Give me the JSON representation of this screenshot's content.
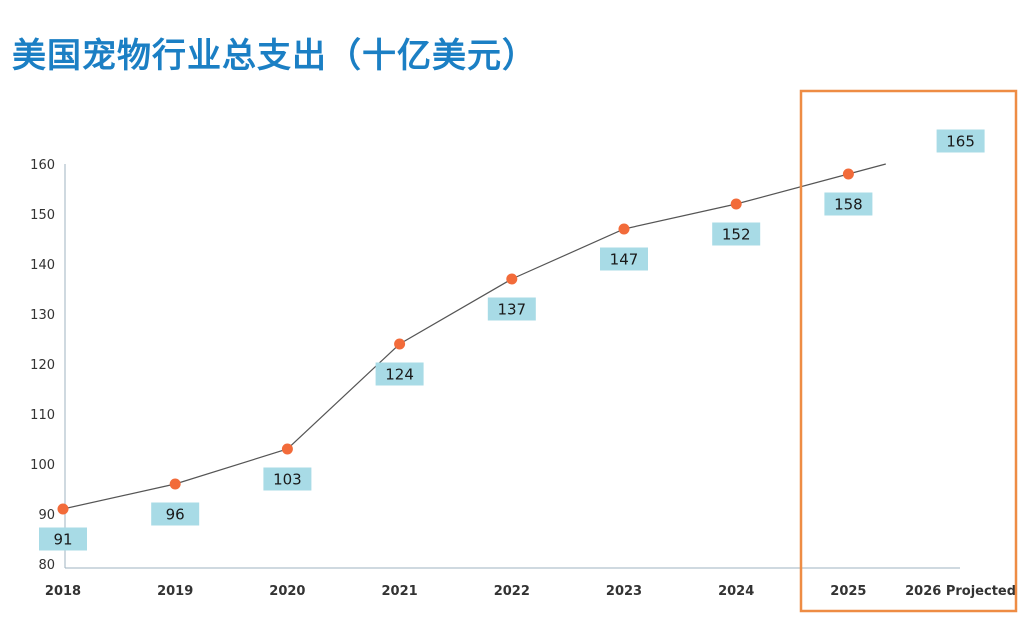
{
  "page": {
    "title": "美国宠物行业总支出（十亿美元）"
  },
  "chart_data": {
    "type": "line",
    "title": "美国宠物行业总支出（十亿美元）",
    "xlabel": "",
    "ylabel": "",
    "categories": [
      "2018",
      "2019",
      "2020",
      "2021",
      "2022",
      "2023",
      "2024",
      "2025",
      "2026 Projected"
    ],
    "values": [
      91,
      96,
      103,
      124,
      137,
      147,
      152,
      158,
      165
    ],
    "line_extends_to_2026": false,
    "marker_count": 8,
    "ylim": [
      80,
      160
    ],
    "yticks": [
      80,
      90,
      100,
      110,
      120,
      130,
      140,
      150,
      160
    ],
    "grid": false,
    "legend": "none",
    "highlight_range": [
      "2025",
      "2026 Projected"
    ],
    "colors": {
      "title": "#1b7fc4",
      "line": "#555555",
      "marker": "#f26b3a",
      "label_bg": "#a8dbe6",
      "highlight_border": "#ee8c44",
      "axis": "#9fb3c0"
    }
  }
}
